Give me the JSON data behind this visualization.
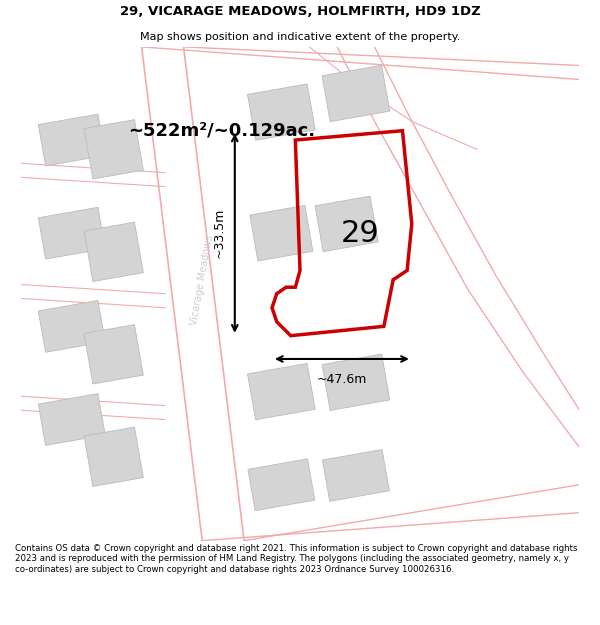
{
  "title": "29, VICARAGE MEADOWS, HOLMFIRTH, HD9 1DZ",
  "subtitle": "Map shows position and indicative extent of the property.",
  "footer": "Contains OS data © Crown copyright and database right 2021. This information is subject to Crown copyright and database rights 2023 and is reproduced with the permission of HM Land Registry. The polygons (including the associated geometry, namely x, y co-ordinates) are subject to Crown copyright and database rights 2023 Ordnance Survey 100026316.",
  "background_color": "#ffffff",
  "map_bg": "#ffffff",
  "title_color": "#000000",
  "area_label": "~522m²/~0.129ac.",
  "number_label": "29",
  "width_label": "~47.6m",
  "height_label": "~33.5m",
  "road_label": "Vicarage Meadows",
  "plot_outline_color": "#cc0000",
  "building_color": "#d4d4d4",
  "building_edge": "#bbbbbb",
  "road_color": "#f2aaaa",
  "dim_color": "#000000",
  "road_fill": "#fce8e8"
}
